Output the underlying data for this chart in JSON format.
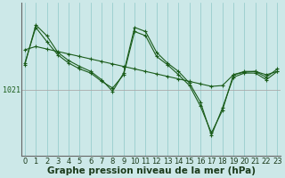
{
  "bg_color": "#cce8e8",
  "line_color": "#1a5c1a",
  "grid_color_v": "#8dc8c8",
  "grid_color_h": "#aaaaaa",
  "xlabel": "Graphe pression niveau de la mer (hPa)",
  "xlabel_fontsize": 7.5,
  "tick_fontsize": 6,
  "ytick_label": "1021",
  "ytick_val": 1021,
  "x_ticks": [
    0,
    1,
    2,
    3,
    4,
    5,
    6,
    7,
    8,
    9,
    10,
    11,
    12,
    13,
    14,
    15,
    16,
    17,
    18,
    19,
    20,
    21,
    22,
    23
  ],
  "ylim_min": 1013.0,
  "ylim_max": 1031.5,
  "series_flat": [
    1025.8,
    1026.2,
    1025.9,
    1025.6,
    1025.3,
    1025.0,
    1024.7,
    1024.4,
    1024.1,
    1023.8,
    1023.5,
    1023.2,
    1022.9,
    1022.6,
    1022.3,
    1022.0,
    1021.7,
    1021.4,
    1021.5,
    1022.8,
    1023.1,
    1023.2,
    1022.8,
    1023.2
  ],
  "series_jagged1": [
    1024.2,
    1028.5,
    1026.8,
    1025.2,
    1024.2,
    1023.5,
    1023.0,
    1022.0,
    1021.2,
    1022.8,
    1028.0,
    1027.5,
    1025.0,
    1024.0,
    1022.8,
    1021.5,
    1019.0,
    1015.8,
    1018.5,
    1022.8,
    1023.2,
    1023.2,
    1022.5,
    1023.5
  ],
  "series_jagged2": [
    1024.0,
    1028.8,
    1027.5,
    1025.5,
    1024.5,
    1023.8,
    1023.2,
    1022.2,
    1020.8,
    1023.0,
    1028.5,
    1028.0,
    1025.5,
    1024.2,
    1023.2,
    1021.8,
    1019.5,
    1015.5,
    1018.8,
    1022.5,
    1023.0,
    1023.0,
    1022.2,
    1023.2
  ]
}
